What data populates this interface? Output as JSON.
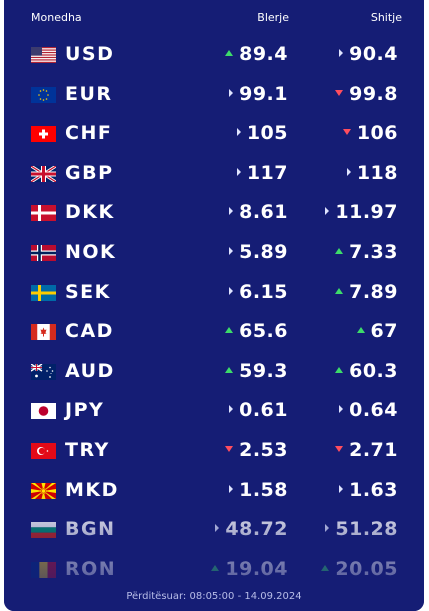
{
  "header": {
    "currency_label": "Monedha",
    "buy_label": "Blerje",
    "sell_label": "Shitje"
  },
  "colors": {
    "panel_bg": "#151d75",
    "up": "#3ddc6a",
    "down": "#ff4d5e",
    "same": "#dfe4ff"
  },
  "rates": [
    {
      "code": "USD",
      "flag": "flag-us-icon",
      "buy": "89.4",
      "buy_trend": "up",
      "sell": "90.4",
      "sell_trend": "same"
    },
    {
      "code": "EUR",
      "flag": "flag-eu-icon",
      "buy": "99.1",
      "buy_trend": "same",
      "sell": "99.8",
      "sell_trend": "down"
    },
    {
      "code": "CHF",
      "flag": "flag-ch-icon",
      "buy": "105",
      "buy_trend": "same",
      "sell": "106",
      "sell_trend": "down"
    },
    {
      "code": "GBP",
      "flag": "flag-gb-icon",
      "buy": "117",
      "buy_trend": "same",
      "sell": "118",
      "sell_trend": "same"
    },
    {
      "code": "DKK",
      "flag": "flag-dk-icon",
      "buy": "8.61",
      "buy_trend": "same",
      "sell": "11.97",
      "sell_trend": "same"
    },
    {
      "code": "NOK",
      "flag": "flag-no-icon",
      "buy": "5.89",
      "buy_trend": "same",
      "sell": "7.33",
      "sell_trend": "up"
    },
    {
      "code": "SEK",
      "flag": "flag-se-icon",
      "buy": "6.15",
      "buy_trend": "same",
      "sell": "7.89",
      "sell_trend": "up"
    },
    {
      "code": "CAD",
      "flag": "flag-ca-icon",
      "buy": "65.6",
      "buy_trend": "up",
      "sell": "67",
      "sell_trend": "up"
    },
    {
      "code": "AUD",
      "flag": "flag-au-icon",
      "buy": "59.3",
      "buy_trend": "up",
      "sell": "60.3",
      "sell_trend": "up"
    },
    {
      "code": "JPY",
      "flag": "flag-jp-icon",
      "buy": "0.61",
      "buy_trend": "same",
      "sell": "0.64",
      "sell_trend": "same"
    },
    {
      "code": "TRY",
      "flag": "flag-tr-icon",
      "buy": "2.53",
      "buy_trend": "down",
      "sell": "2.71",
      "sell_trend": "down"
    },
    {
      "code": "MKD",
      "flag": "flag-mk-icon",
      "buy": "1.58",
      "buy_trend": "same",
      "sell": "1.63",
      "sell_trend": "same"
    },
    {
      "code": "BGN",
      "flag": "flag-bg-icon",
      "buy": "48.72",
      "buy_trend": "same",
      "sell": "51.28",
      "sell_trend": "same"
    },
    {
      "code": "RON",
      "flag": "flag-ro-icon",
      "buy": "19.04",
      "buy_trend": "up",
      "sell": "20.05",
      "sell_trend": "up"
    }
  ],
  "footer": {
    "updated_text": "Përditësuar: 08:05:00 - 14.09.2024"
  }
}
